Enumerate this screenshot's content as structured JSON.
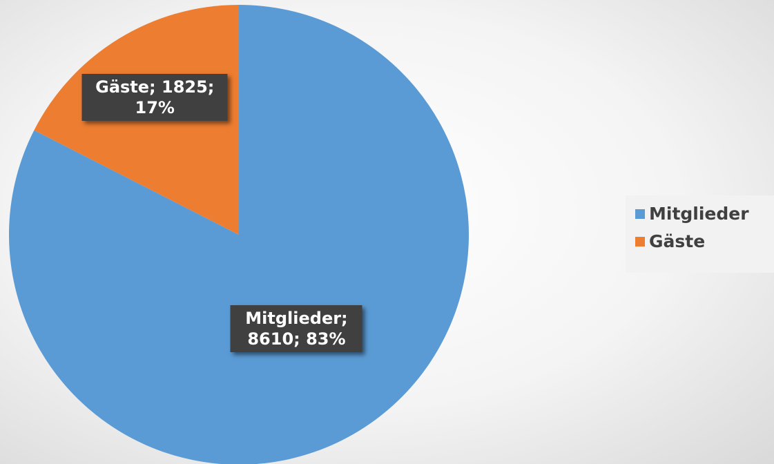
{
  "chart_data": {
    "type": "pie",
    "categories": [
      "Mitglieder",
      "Gäste"
    ],
    "values": [
      8610,
      1825
    ],
    "value_labels": [
      "Mitglieder; 8610; 83%",
      "Gäste; 1825; 17%"
    ],
    "colors": [
      "#5b9bd5",
      "#ed7d31"
    ],
    "legend": "right"
  }
}
